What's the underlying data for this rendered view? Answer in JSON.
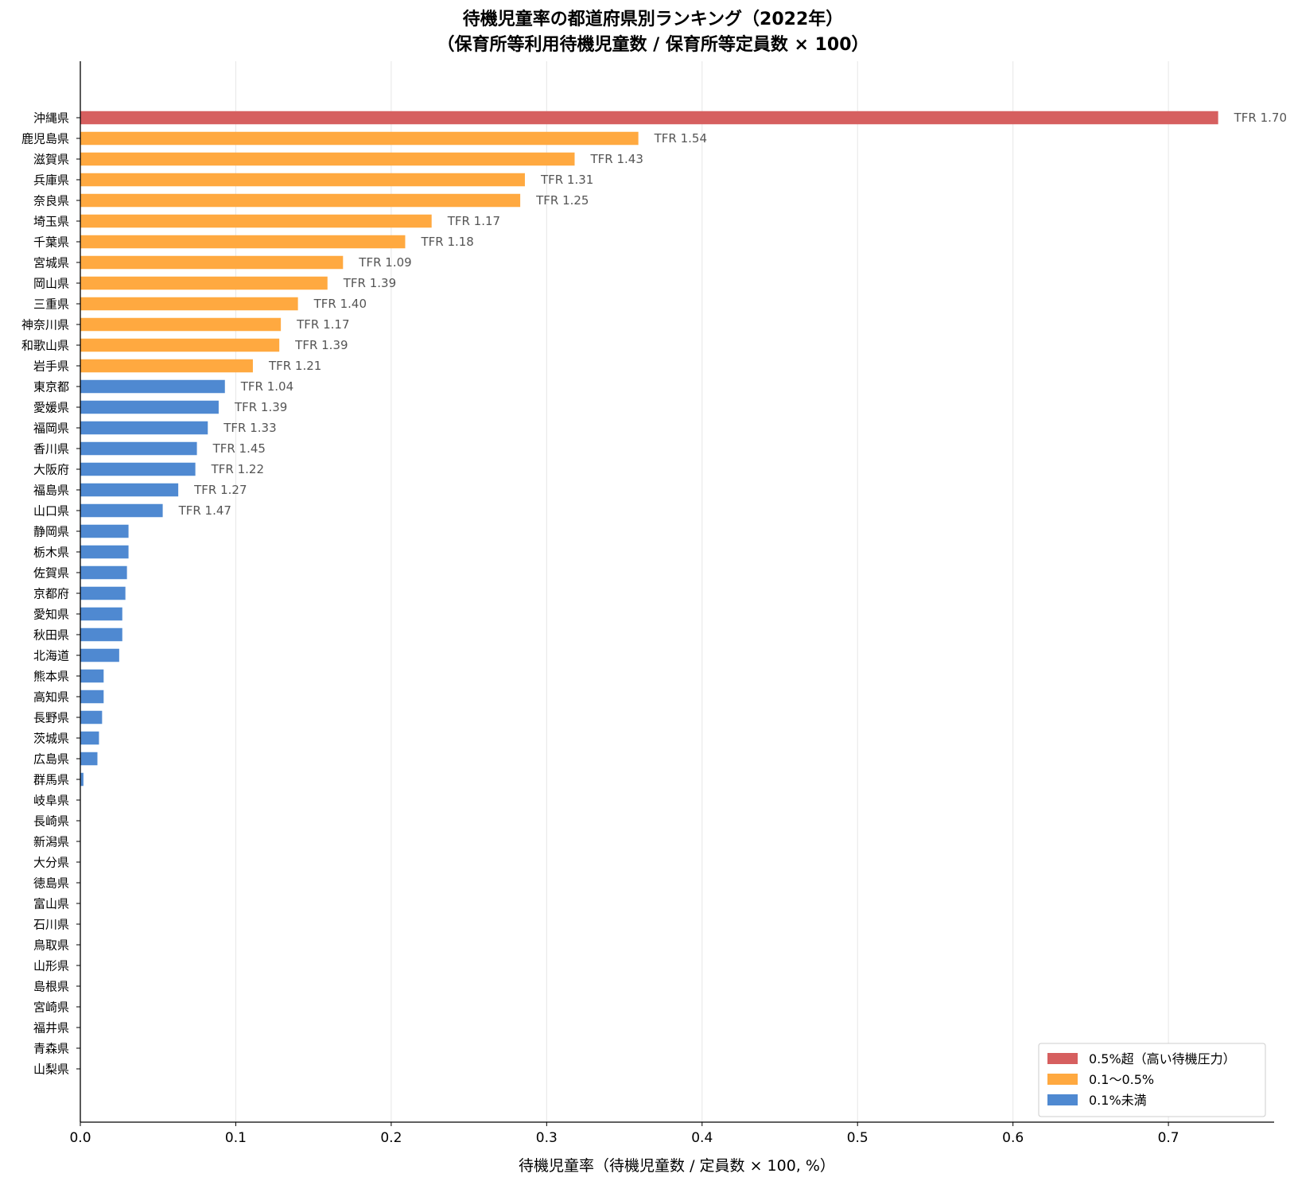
{
  "chart_data": {
    "type": "bar",
    "orientation": "horizontal",
    "title": "待機児童率の都道府県別ランキング（2022年）",
    "subtitle": "（保育所等利用待機児童数 / 保育所等定員数 × 100）",
    "xlabel": "待機児童率（待機児童数 / 定員数 × 100, %）",
    "ylabel": "",
    "xlim": [
      0,
      0.768
    ],
    "xticks": [
      "0.0",
      "0.1",
      "0.2",
      "0.3",
      "0.4",
      "0.5",
      "0.6",
      "0.7"
    ],
    "grid": "vertical",
    "legend_position": "bottom-right",
    "colors": {
      "high": "#d65f5f",
      "mid": "#ffa940",
      "low": "#4f89d1"
    },
    "legend": [
      {
        "group": "high",
        "label": "0.5%超（高い待機圧力）"
      },
      {
        "group": "mid",
        "label": "0.1〜0.5%"
      },
      {
        "group": "low",
        "label": "0.1%未満"
      }
    ],
    "bars": [
      {
        "category": "沖縄県",
        "value": 0.732,
        "group": "high",
        "annotation": "TFR 1.70"
      },
      {
        "category": "鹿児島県",
        "value": 0.359,
        "group": "mid",
        "annotation": "TFR 1.54"
      },
      {
        "category": "滋賀県",
        "value": 0.318,
        "group": "mid",
        "annotation": "TFR 1.43"
      },
      {
        "category": "兵庫県",
        "value": 0.286,
        "group": "mid",
        "annotation": "TFR 1.31"
      },
      {
        "category": "奈良県",
        "value": 0.283,
        "group": "mid",
        "annotation": "TFR 1.25"
      },
      {
        "category": "埼玉県",
        "value": 0.226,
        "group": "mid",
        "annotation": "TFR 1.17"
      },
      {
        "category": "千葉県",
        "value": 0.209,
        "group": "mid",
        "annotation": "TFR 1.18"
      },
      {
        "category": "宮城県",
        "value": 0.169,
        "group": "mid",
        "annotation": "TFR 1.09"
      },
      {
        "category": "岡山県",
        "value": 0.159,
        "group": "mid",
        "annotation": "TFR 1.39"
      },
      {
        "category": "三重県",
        "value": 0.14,
        "group": "mid",
        "annotation": "TFR 1.40"
      },
      {
        "category": "神奈川県",
        "value": 0.129,
        "group": "mid",
        "annotation": "TFR 1.17"
      },
      {
        "category": "和歌山県",
        "value": 0.128,
        "group": "mid",
        "annotation": "TFR 1.39"
      },
      {
        "category": "岩手県",
        "value": 0.111,
        "group": "mid",
        "annotation": "TFR 1.21"
      },
      {
        "category": "東京都",
        "value": 0.093,
        "group": "low",
        "annotation": "TFR 1.04"
      },
      {
        "category": "愛媛県",
        "value": 0.089,
        "group": "low",
        "annotation": "TFR 1.39"
      },
      {
        "category": "福岡県",
        "value": 0.082,
        "group": "low",
        "annotation": "TFR 1.33"
      },
      {
        "category": "香川県",
        "value": 0.075,
        "group": "low",
        "annotation": "TFR 1.45"
      },
      {
        "category": "大阪府",
        "value": 0.074,
        "group": "low",
        "annotation": "TFR 1.22"
      },
      {
        "category": "福島県",
        "value": 0.063,
        "group": "low",
        "annotation": "TFR 1.27"
      },
      {
        "category": "山口県",
        "value": 0.053,
        "group": "low",
        "annotation": "TFR 1.47"
      },
      {
        "category": "静岡県",
        "value": 0.031,
        "group": "low",
        "annotation": ""
      },
      {
        "category": "栃木県",
        "value": 0.031,
        "group": "low",
        "annotation": ""
      },
      {
        "category": "佐賀県",
        "value": 0.03,
        "group": "low",
        "annotation": ""
      },
      {
        "category": "京都府",
        "value": 0.029,
        "group": "low",
        "annotation": ""
      },
      {
        "category": "愛知県",
        "value": 0.027,
        "group": "low",
        "annotation": ""
      },
      {
        "category": "秋田県",
        "value": 0.027,
        "group": "low",
        "annotation": ""
      },
      {
        "category": "北海道",
        "value": 0.025,
        "group": "low",
        "annotation": ""
      },
      {
        "category": "熊本県",
        "value": 0.015,
        "group": "low",
        "annotation": ""
      },
      {
        "category": "高知県",
        "value": 0.015,
        "group": "low",
        "annotation": ""
      },
      {
        "category": "長野県",
        "value": 0.014,
        "group": "low",
        "annotation": ""
      },
      {
        "category": "茨城県",
        "value": 0.012,
        "group": "low",
        "annotation": ""
      },
      {
        "category": "広島県",
        "value": 0.011,
        "group": "low",
        "annotation": ""
      },
      {
        "category": "群馬県",
        "value": 0.002,
        "group": "low",
        "annotation": ""
      },
      {
        "category": "岐阜県",
        "value": 0,
        "group": "low",
        "annotation": ""
      },
      {
        "category": "長崎県",
        "value": 0,
        "group": "low",
        "annotation": ""
      },
      {
        "category": "新潟県",
        "value": 0,
        "group": "low",
        "annotation": ""
      },
      {
        "category": "大分県",
        "value": 0,
        "group": "low",
        "annotation": ""
      },
      {
        "category": "徳島県",
        "value": 0,
        "group": "low",
        "annotation": ""
      },
      {
        "category": "富山県",
        "value": 0,
        "group": "low",
        "annotation": ""
      },
      {
        "category": "石川県",
        "value": 0,
        "group": "low",
        "annotation": ""
      },
      {
        "category": "鳥取県",
        "value": 0,
        "group": "low",
        "annotation": ""
      },
      {
        "category": "山形県",
        "value": 0,
        "group": "low",
        "annotation": ""
      },
      {
        "category": "島根県",
        "value": 0,
        "group": "low",
        "annotation": ""
      },
      {
        "category": "宮崎県",
        "value": 0,
        "group": "low",
        "annotation": ""
      },
      {
        "category": "福井県",
        "value": 0,
        "group": "low",
        "annotation": ""
      },
      {
        "category": "青森県",
        "value": 0,
        "group": "low",
        "annotation": ""
      },
      {
        "category": "山梨県",
        "value": 0,
        "group": "low",
        "annotation": ""
      }
    ]
  }
}
